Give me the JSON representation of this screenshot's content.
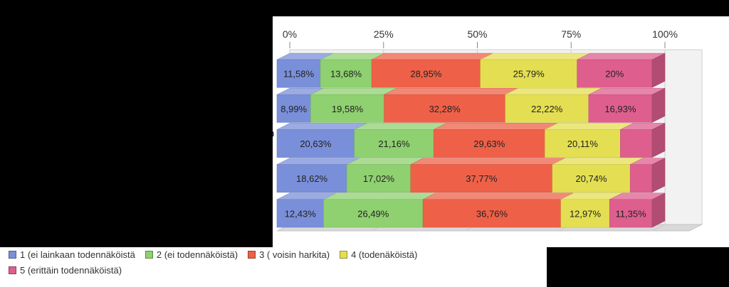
{
  "chart_data": {
    "type": "bar",
    "orientation": "horizontal",
    "stacked": "percent",
    "xlim": [
      0,
      100
    ],
    "tick_labels": [
      "0%",
      "25%",
      "50%",
      "75%",
      "100%"
    ],
    "grid": true,
    "legend_position": "bottom",
    "series": [
      {
        "name": "1 (ei lainkaan todennäköistä",
        "color": "#7a8fd9",
        "values": [
          11.58,
          8.99,
          20.63,
          18.62,
          12.43
        ],
        "labels": [
          "11,58%",
          "8,99%",
          "20,63%",
          "18,62%",
          "12,43%"
        ]
      },
      {
        "name": "2 (ei todennäköistä)",
        "color": "#8fd070",
        "values": [
          13.68,
          19.58,
          21.16,
          17.02,
          26.49
        ],
        "labels": [
          "13,68%",
          "19,58%",
          "21,16%",
          "17,02%",
          "26,49%"
        ]
      },
      {
        "name": "3 ( voisin harkita)",
        "color": "#ee6148",
        "values": [
          28.95,
          32.28,
          29.63,
          37.77,
          36.76
        ],
        "labels": [
          "28,95%",
          "32,28%",
          "29,63%",
          "37,77%",
          "36,76%"
        ]
      },
      {
        "name": "4 (todenäköistä)",
        "color": "#e4df52",
        "values": [
          25.79,
          22.22,
          20.11,
          20.74,
          12.97
        ],
        "labels": [
          "25,79%",
          "22,22%",
          "20,11%",
          "20,74%",
          "12,97%"
        ]
      },
      {
        "name": "5 (erittäin todennäköistä)",
        "color": "#de5f8e",
        "values": [
          20.0,
          16.93,
          8.47,
          5.85,
          11.35
        ],
        "labels": [
          "20%",
          "16,93%",
          "",
          "",
          "11,35%"
        ]
      }
    ]
  },
  "stray_text": "n"
}
